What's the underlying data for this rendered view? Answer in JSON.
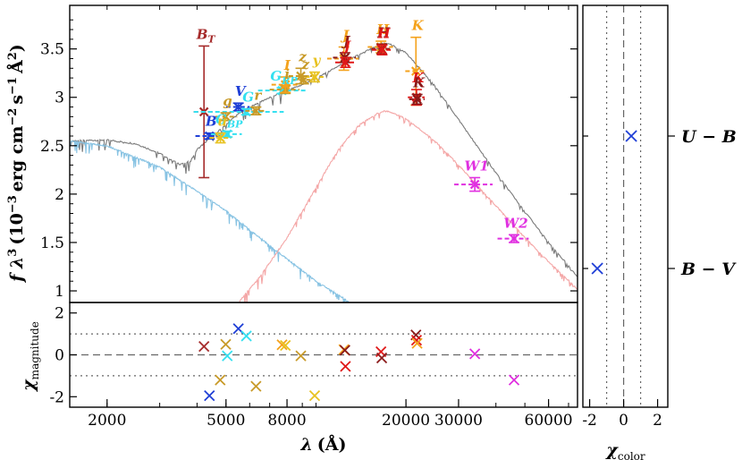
{
  "chart_data": [
    {
      "type": "line",
      "panel": "sed",
      "xscale": "log",
      "xlim": [
        1500,
        75000
      ],
      "ylim": [
        0.88,
        3.95
      ],
      "xlabel_prefix": "λ",
      "xlabel_unit": "(Å)",
      "ylabel_prefix": "f λ",
      "ylabel_exp": "3",
      "ylabel_unit": "(10",
      "ylabel_unit_exp": "−3",
      "ylabel_rest": "erg cm",
      "ylabel_rest_exp": "−2",
      "ylabel_s": "s",
      "ylabel_s_exp": "−1",
      "ylabel_A": "Å",
      "ylabel_A_exp": "2",
      "ylabel_close": ")",
      "xticks": [
        2000,
        5000,
        8000,
        20000,
        30000,
        60000
      ],
      "xtick_labels": [
        "2000",
        "5000",
        "8000",
        "20000",
        "30000",
        "60000"
      ],
      "yticks": [
        1,
        1.5,
        2,
        2.5,
        3,
        3.5
      ],
      "ytick_labels": [
        "1",
        "1.5",
        "2",
        "2.5",
        "3",
        "3.5"
      ],
      "models": [
        {
          "role": "total",
          "color": "#7a7a7a",
          "points": [
            [
              1500,
              2.55
            ],
            [
              2000,
              2.56
            ],
            [
              2500,
              2.52
            ],
            [
              3000,
              2.42
            ],
            [
              3500,
              2.31
            ],
            [
              3800,
              2.34
            ],
            [
              4000,
              2.46
            ],
            [
              4500,
              2.6
            ],
            [
              5000,
              2.72
            ],
            [
              5500,
              2.83
            ],
            [
              6000,
              2.9
            ],
            [
              7000,
              3.0
            ],
            [
              8000,
              3.07
            ],
            [
              9000,
              3.13
            ],
            [
              10000,
              3.2
            ],
            [
              12000,
              3.33
            ],
            [
              14000,
              3.45
            ],
            [
              16000,
              3.53
            ],
            [
              17000,
              3.56
            ],
            [
              18000,
              3.54
            ],
            [
              20000,
              3.46
            ],
            [
              25000,
              3.12
            ],
            [
              30000,
              2.77
            ],
            [
              40000,
              2.22
            ],
            [
              50000,
              1.82
            ],
            [
              60000,
              1.5
            ],
            [
              75000,
              1.15
            ]
          ]
        },
        {
          "role": "hot component",
          "color": "#88c3e3",
          "points": [
            [
              1500,
              2.55
            ],
            [
              2000,
              2.5
            ],
            [
              3000,
              2.28
            ],
            [
              4000,
              2.03
            ],
            [
              5000,
              1.83
            ],
            [
              6000,
              1.63
            ],
            [
              7000,
              1.47
            ],
            [
              8000,
              1.33
            ],
            [
              9000,
              1.21
            ],
            [
              10000,
              1.1
            ],
            [
              11000,
              1.02
            ],
            [
              12000,
              0.95
            ],
            [
              13000,
              0.88
            ]
          ]
        },
        {
          "role": "cool component",
          "color": "#f4a6a6",
          "points": [
            [
              5500,
              0.88
            ],
            [
              6500,
              1.15
            ],
            [
              8000,
              1.55
            ],
            [
              10000,
              2.07
            ],
            [
              12000,
              2.48
            ],
            [
              14000,
              2.72
            ],
            [
              16000,
              2.83
            ],
            [
              17000,
              2.86
            ],
            [
              18000,
              2.84
            ],
            [
              20000,
              2.78
            ],
            [
              25000,
              2.55
            ],
            [
              30000,
              2.3
            ],
            [
              40000,
              1.88
            ],
            [
              50000,
              1.55
            ],
            [
              60000,
              1.3
            ],
            [
              75000,
              1.02
            ]
          ]
        }
      ],
      "photometry": [
        {
          "label": "B",
          "sub": "T",
          "lambda": 4220,
          "lambda_lo": 3900,
          "lambda_hi": 4560,
          "flux": 2.85,
          "err": 0.68,
          "model": 2.62,
          "color": "#a52a2a"
        },
        {
          "label": "B",
          "sub": "",
          "lambda": 4400,
          "lambda_lo": 3950,
          "lambda_hi": 4900,
          "flux": 2.6,
          "err": 0.03,
          "model": 2.6,
          "color": "#1f3fd6"
        },
        {
          "label": "V",
          "sub": "",
          "lambda": 5500,
          "lambda_lo": 5000,
          "lambda_hi": 6000,
          "flux": 2.9,
          "err": 0.04,
          "model": 2.86,
          "color": "#1f3fd6"
        },
        {
          "label": "G",
          "sub": "BP",
          "lambda": 5050,
          "lambda_lo": 4450,
          "lambda_hi": 5650,
          "flux": 2.62,
          "err": 0.03,
          "model": 2.62,
          "color": "#35e0f0"
        },
        {
          "label": "G",
          "sub": "",
          "lambda": 5850,
          "lambda_lo": 3900,
          "lambda_hi": 7800,
          "flux": 2.85,
          "err": 0.03,
          "model": 2.82,
          "color": "#35e0f0"
        },
        {
          "label": "G",
          "sub": "RP",
          "lambda": 7700,
          "lambda_lo": 6400,
          "lambda_hi": 9300,
          "flux": 3.07,
          "err": 0.03,
          "model": 3.03,
          "color": "#35e0f0"
        },
        {
          "label": "u",
          "sub": "",
          "lambda": 4790,
          "lambda_lo": 4400,
          "lambda_hi": 5200,
          "flux": 2.58,
          "err": 0.05,
          "model": 2.64,
          "color": "#e8c220"
        },
        {
          "label": "g",
          "sub": "",
          "lambda": 4990,
          "lambda_lo": 4600,
          "lambda_hi": 5450,
          "flux": 2.8,
          "err": 0.04,
          "model": 2.76,
          "color": "#c89a28"
        },
        {
          "label": "r",
          "sub": "",
          "lambda": 6300,
          "lambda_lo": 5800,
          "lambda_hi": 6800,
          "flux": 2.86,
          "err": 0.04,
          "model": 2.94,
          "color": "#c89a28"
        },
        {
          "label": "i",
          "sub": "",
          "lambda": 7900,
          "lambda_lo": 7000,
          "lambda_hi": 8800,
          "flux": 3.08,
          "err": 0.04,
          "model": 3.05,
          "color": "#c89a28"
        },
        {
          "label": "z",
          "sub": "",
          "lambda": 9100,
          "lambda_lo": 8300,
          "lambda_hi": 9900,
          "flux": 3.18,
          "err": 0.04,
          "model": 3.19,
          "color": "#c89a28"
        },
        {
          "label": "y",
          "sub": "",
          "lambda": 9900,
          "lambda_lo": 9200,
          "lambda_hi": 10600,
          "flux": 3.21,
          "err": 0.05,
          "model": 3.26,
          "color": "#e8c220"
        },
        {
          "label": "I",
          "sub": "",
          "lambda": 7900,
          "lambda_lo": 7100,
          "lambda_hi": 8700,
          "flux": 3.13,
          "err": 0.08,
          "model": 3.05,
          "color": "#f4a21c"
        },
        {
          "label": "z",
          "sub": "",
          "lambda": 8900,
          "lambda_lo": 8100,
          "lambda_hi": 9700,
          "flux": 3.22,
          "err": 0.08,
          "model": 3.18,
          "color": "#c89a28"
        },
        {
          "label": "J",
          "sub": "",
          "lambda": 12400,
          "lambda_lo": 10900,
          "lambda_hi": 13900,
          "flux": 3.4,
          "err": 0.12,
          "model": 3.37,
          "color": "#f4a21c"
        },
        {
          "label": "J",
          "sub": "",
          "lambda": 12500,
          "lambda_lo": 11400,
          "lambda_hi": 13600,
          "flux": 3.41,
          "err": 0.05,
          "model": 3.37,
          "color": "#8b1a1a"
        },
        {
          "label": "J",
          "sub": "",
          "lambda": 12550,
          "lambda_lo": 11600,
          "lambda_hi": 13500,
          "flux": 3.36,
          "err": 0.05,
          "model": 3.37,
          "color": "#e01818"
        },
        {
          "label": "H",
          "sub": "",
          "lambda": 16500,
          "lambda_lo": 14900,
          "lambda_hi": 18100,
          "flux": 3.52,
          "err": 0.06,
          "model": 3.52,
          "color": "#f4a21c"
        },
        {
          "label": "H",
          "sub": "",
          "lambda": 16600,
          "lambda_lo": 15300,
          "lambda_hi": 17900,
          "flux": 3.5,
          "err": 0.05,
          "model": 3.52,
          "color": "#8b1a1a"
        },
        {
          "label": "H",
          "sub": "",
          "lambda": 16650,
          "lambda_lo": 15400,
          "lambda_hi": 17800,
          "flux": 3.49,
          "err": 0.05,
          "model": 3.52,
          "color": "#e01818"
        },
        {
          "label": "K",
          "sub": "",
          "lambda": 21600,
          "lambda_lo": 19900,
          "lambda_hi": 23300,
          "flux": 3.27,
          "err": 0.35,
          "model": 3.17,
          "color": "#f4a21c"
        },
        {
          "label": "K",
          "sub": "",
          "lambda": 21700,
          "lambda_lo": 20300,
          "lambda_hi": 23100,
          "flux": 3.0,
          "err": 0.08,
          "model": 3.17,
          "color": "#e01818"
        },
        {
          "label": "K",
          "sub": "",
          "lambda": 21800,
          "lambda_lo": 20500,
          "lambda_hi": 23100,
          "flux": 2.98,
          "err": 0.05,
          "model": 3.17,
          "color": "#8b1a1a"
        },
        {
          "label": "W1",
          "sub": "",
          "lambda": 34000,
          "lambda_lo": 29000,
          "lambda_hi": 39000,
          "flux": 2.1,
          "err": 0.07,
          "model": 2.5,
          "color": "#e030e0"
        },
        {
          "label": "W2",
          "sub": "",
          "lambda": 46000,
          "lambda_lo": 40500,
          "lambda_hi": 51500,
          "flux": 1.54,
          "err": 0.04,
          "model": 1.9,
          "color": "#e030e0"
        }
      ]
    },
    {
      "type": "scatter",
      "panel": "residuals",
      "ylim": [
        -2.5,
        2.5
      ],
      "yticks": [
        -2,
        0,
        2
      ],
      "ytick_labels": [
        "-2",
        "0",
        "2"
      ],
      "ylabel": "χ",
      "ylabel_sub": "magnitude",
      "points": [
        {
          "lambda": 4220,
          "chi": 0.4,
          "color": "#a52a2a"
        },
        {
          "lambda": 4400,
          "chi": -1.95,
          "color": "#1f3fd6"
        },
        {
          "lambda": 4780,
          "chi": -1.2,
          "color": "#c89a28"
        },
        {
          "lambda": 4990,
          "chi": 0.5,
          "color": "#c89a28"
        },
        {
          "lambda": 5050,
          "chi": -0.05,
          "color": "#35e0f0"
        },
        {
          "lambda": 5500,
          "chi": 1.25,
          "color": "#1f3fd6"
        },
        {
          "lambda": 5850,
          "chi": 0.9,
          "color": "#35e0f0"
        },
        {
          "lambda": 6300,
          "chi": -1.5,
          "color": "#c89a28"
        },
        {
          "lambda": 7700,
          "chi": 0.48,
          "color": "#f4a21c"
        },
        {
          "lambda": 7900,
          "chi": 0.45,
          "color": "#e8c220"
        },
        {
          "lambda": 8900,
          "chi": -0.05,
          "color": "#c89a28"
        },
        {
          "lambda": 9900,
          "chi": -1.95,
          "color": "#e8c220"
        },
        {
          "lambda": 12400,
          "chi": 0.25,
          "color": "#f4a21c"
        },
        {
          "lambda": 12500,
          "chi": 0.22,
          "color": "#8b1a1a"
        },
        {
          "lambda": 12550,
          "chi": -0.55,
          "color": "#e01818"
        },
        {
          "lambda": 16500,
          "chi": 0.15,
          "color": "#e01818"
        },
        {
          "lambda": 16600,
          "chi": -0.15,
          "color": "#8b1a1a"
        },
        {
          "lambda": 21600,
          "chi": 0.95,
          "color": "#8b1a1a"
        },
        {
          "lambda": 21700,
          "chi": 0.7,
          "color": "#e01818"
        },
        {
          "lambda": 21800,
          "chi": 0.55,
          "color": "#f4a21c"
        },
        {
          "lambda": 34000,
          "chi": 0.05,
          "color": "#e030e0"
        },
        {
          "lambda": 46000,
          "chi": -1.2,
          "color": "#e030e0"
        }
      ]
    },
    {
      "type": "scatter",
      "panel": "color",
      "xlim": [
        -2.4,
        2.6
      ],
      "xticks": [
        -2,
        0,
        2
      ],
      "xtick_labels": [
        "-2",
        "0",
        "2"
      ],
      "xlabel": "χ",
      "xlabel_sub": "color",
      "points": [
        {
          "name_main": "U",
          "name_sep": " − ",
          "name_second": "B",
          "chi": 0.45,
          "color": "#1f3fd6"
        },
        {
          "name_main": "B",
          "name_sep": " − ",
          "name_second": "V",
          "chi": -1.55,
          "color": "#1f3fd6"
        }
      ]
    }
  ]
}
